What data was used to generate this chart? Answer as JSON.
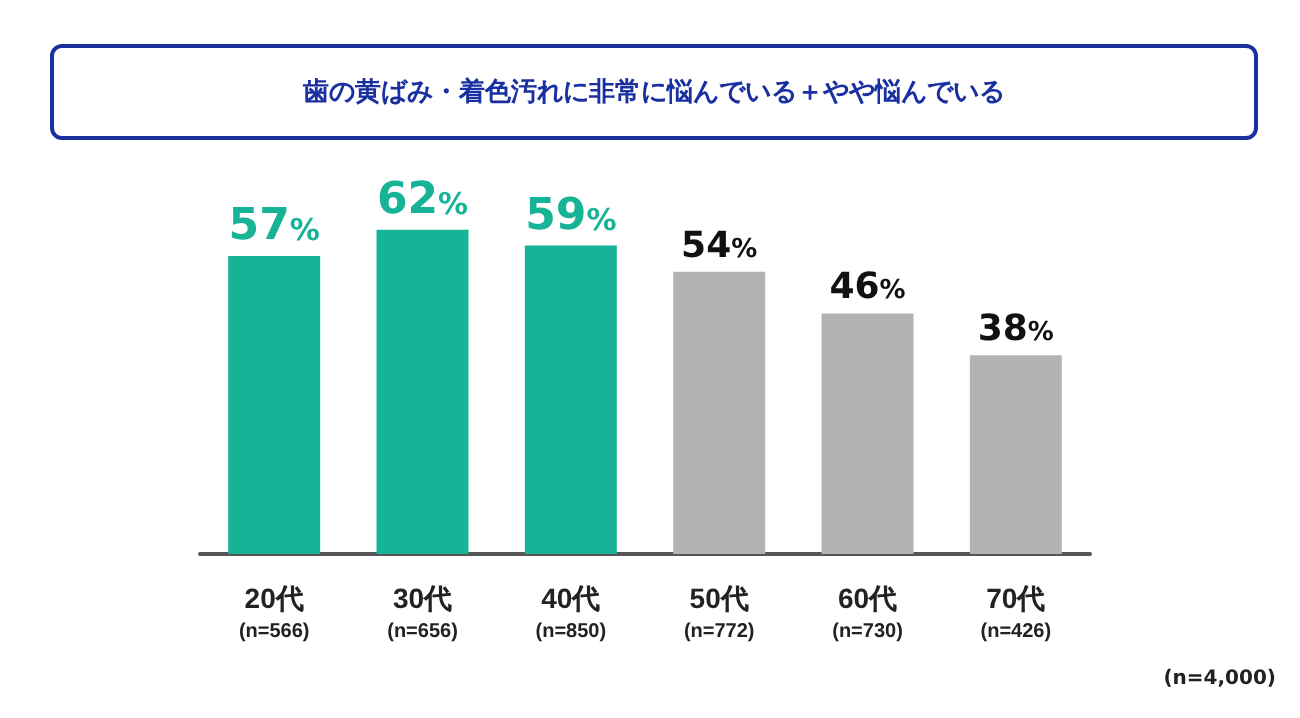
{
  "chart_data": {
    "type": "bar",
    "title": "歯の黄ばみ・着色汚れに非常に悩んでいる＋やや悩んでいる",
    "categories": [
      "20代\n(n=566)",
      "30代\n(n=656)",
      "40代\n(n=850)",
      "50代\n(n=772)",
      "60代\n(n=730)",
      "70代\n(n=426)"
    ],
    "values": [
      57,
      62,
      59,
      54,
      46,
      38
    ],
    "colors": [
      "#17b397",
      "#17b397",
      "#17b397",
      "#b3b3b3",
      "#b3b3b3",
      "#b3b3b3"
    ],
    "value_labels": [
      "57%",
      "62%",
      "59%",
      "54%",
      "46%",
      "38%"
    ],
    "annotations": [
      "(n=4,000)"
    ]
  }
}
